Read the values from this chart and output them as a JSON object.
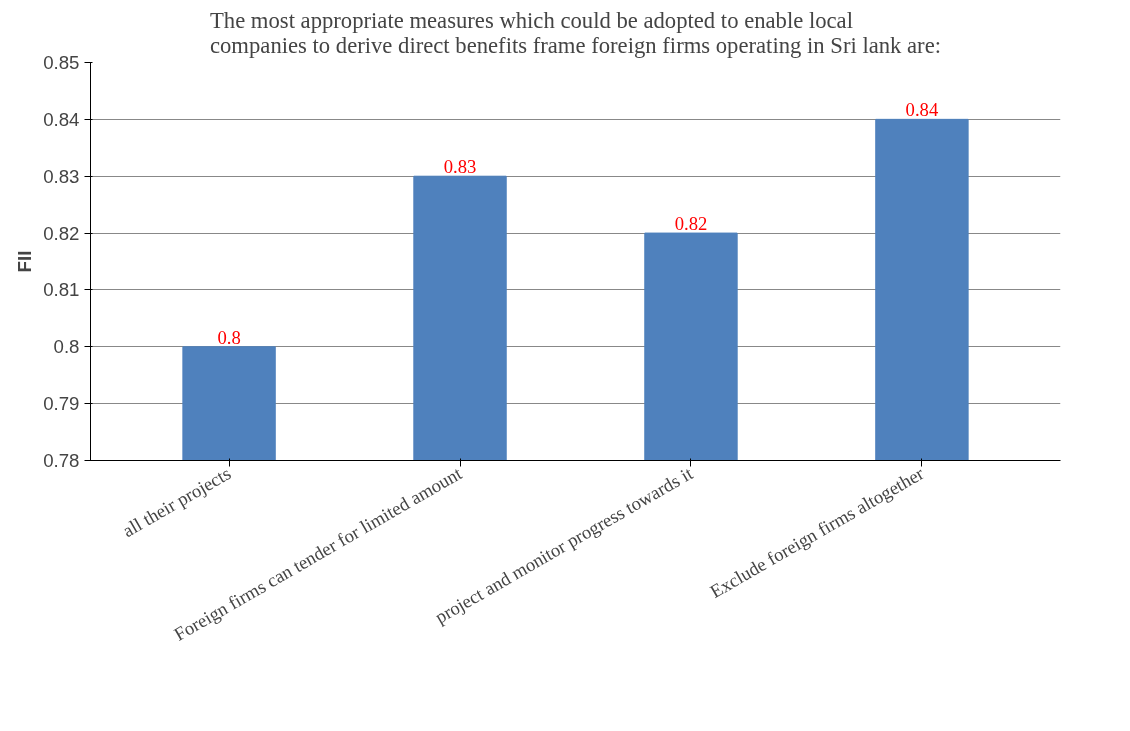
{
  "chart_data": {
    "type": "bar",
    "title": "The most appropriate measures which could be adopted to enable local\ncompanies to derive direct benefits frame foreign firms operating in Sri lank are:",
    "ylabel": "FII",
    "categories": [
      "all their projects",
      "Foreign firms can tender for limited amount",
      "project and monitor progress towards it",
      "Exclude foreign firms altogether"
    ],
    "values": [
      0.8,
      0.83,
      0.82,
      0.84
    ],
    "color": "#4f81bd",
    "ylim": [
      0.78,
      0.85
    ],
    "yticks": [
      0.78,
      0.79,
      0.8,
      0.81,
      0.82,
      0.83,
      0.84,
      0.85
    ],
    "grid": "y",
    "data_labels": true
  }
}
